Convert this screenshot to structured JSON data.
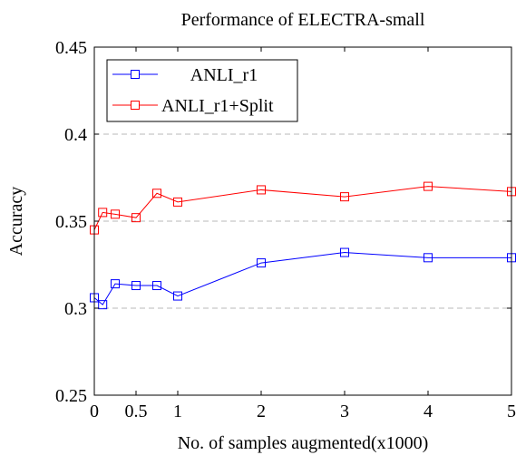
{
  "chart_data": {
    "type": "line",
    "title": "Performance of ELECTRA-small",
    "xlabel": "No. of samples augmented(x1000)",
    "ylabel": "Accuracy",
    "xlim": [
      0,
      5
    ],
    "ylim": [
      0.25,
      0.45
    ],
    "grid": "horizontal-dashed",
    "legend_position": "top-left",
    "x_ticks": [
      0,
      0.5,
      1,
      2,
      3,
      4,
      5
    ],
    "x_tick_labels": [
      "0",
      "0.5",
      "1",
      "2",
      "3",
      "4",
      "5"
    ],
    "y_ticks": [
      0.25,
      0.3,
      0.35,
      0.4,
      0.45
    ],
    "y_tick_labels": [
      "0.25",
      "0.3",
      "0.35",
      "0.4",
      "0.45"
    ],
    "x": [
      0,
      0.1,
      0.25,
      0.5,
      0.75,
      1,
      2,
      3,
      4,
      5
    ],
    "series": [
      {
        "name": "ANLI_r1",
        "color": "#0000ff",
        "marker": "square",
        "values": [
          0.306,
          0.302,
          0.314,
          0.313,
          0.313,
          0.307,
          0.326,
          0.332,
          0.329,
          0.329
        ]
      },
      {
        "name": "ANLI_r1+Split",
        "color": "#ff0000",
        "marker": "square",
        "values": [
          0.345,
          0.355,
          0.354,
          0.352,
          0.366,
          0.361,
          0.368,
          0.364,
          0.37,
          0.367
        ]
      }
    ]
  }
}
